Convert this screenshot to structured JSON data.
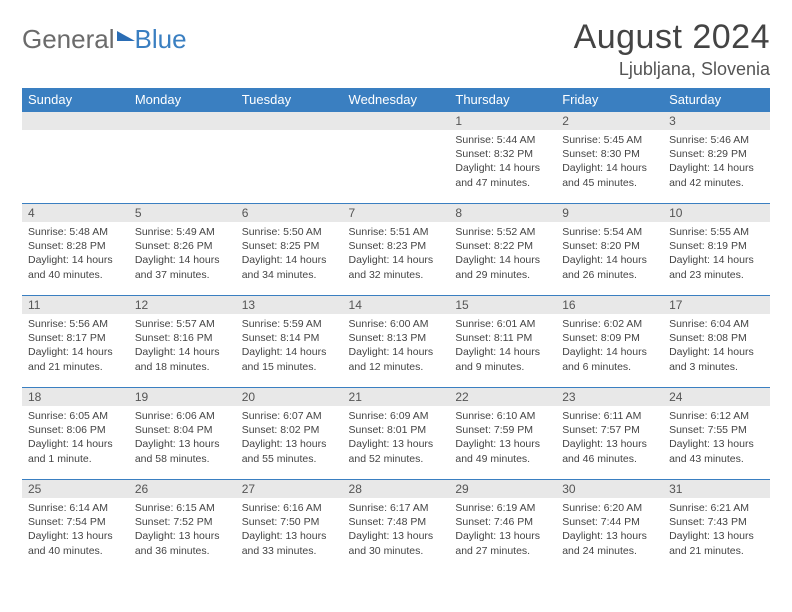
{
  "brand": {
    "text1": "General",
    "text2": "Blue"
  },
  "title": "August 2024",
  "location": "Ljubljana, Slovenia",
  "colors": {
    "header_bg": "#3a7fc1",
    "daynum_bg": "#e8e8e8",
    "border": "#3a7fc1",
    "text": "#444444",
    "page_bg": "#ffffff"
  },
  "weekdays": [
    "Sunday",
    "Monday",
    "Tuesday",
    "Wednesday",
    "Thursday",
    "Friday",
    "Saturday"
  ],
  "grid": [
    [
      null,
      null,
      null,
      null,
      {
        "n": "1",
        "sr": "Sunrise: 5:44 AM",
        "ss": "Sunset: 8:32 PM",
        "dl": "Daylight: 14 hours and 47 minutes."
      },
      {
        "n": "2",
        "sr": "Sunrise: 5:45 AM",
        "ss": "Sunset: 8:30 PM",
        "dl": "Daylight: 14 hours and 45 minutes."
      },
      {
        "n": "3",
        "sr": "Sunrise: 5:46 AM",
        "ss": "Sunset: 8:29 PM",
        "dl": "Daylight: 14 hours and 42 minutes."
      }
    ],
    [
      {
        "n": "4",
        "sr": "Sunrise: 5:48 AM",
        "ss": "Sunset: 8:28 PM",
        "dl": "Daylight: 14 hours and 40 minutes."
      },
      {
        "n": "5",
        "sr": "Sunrise: 5:49 AM",
        "ss": "Sunset: 8:26 PM",
        "dl": "Daylight: 14 hours and 37 minutes."
      },
      {
        "n": "6",
        "sr": "Sunrise: 5:50 AM",
        "ss": "Sunset: 8:25 PM",
        "dl": "Daylight: 14 hours and 34 minutes."
      },
      {
        "n": "7",
        "sr": "Sunrise: 5:51 AM",
        "ss": "Sunset: 8:23 PM",
        "dl": "Daylight: 14 hours and 32 minutes."
      },
      {
        "n": "8",
        "sr": "Sunrise: 5:52 AM",
        "ss": "Sunset: 8:22 PM",
        "dl": "Daylight: 14 hours and 29 minutes."
      },
      {
        "n": "9",
        "sr": "Sunrise: 5:54 AM",
        "ss": "Sunset: 8:20 PM",
        "dl": "Daylight: 14 hours and 26 minutes."
      },
      {
        "n": "10",
        "sr": "Sunrise: 5:55 AM",
        "ss": "Sunset: 8:19 PM",
        "dl": "Daylight: 14 hours and 23 minutes."
      }
    ],
    [
      {
        "n": "11",
        "sr": "Sunrise: 5:56 AM",
        "ss": "Sunset: 8:17 PM",
        "dl": "Daylight: 14 hours and 21 minutes."
      },
      {
        "n": "12",
        "sr": "Sunrise: 5:57 AM",
        "ss": "Sunset: 8:16 PM",
        "dl": "Daylight: 14 hours and 18 minutes."
      },
      {
        "n": "13",
        "sr": "Sunrise: 5:59 AM",
        "ss": "Sunset: 8:14 PM",
        "dl": "Daylight: 14 hours and 15 minutes."
      },
      {
        "n": "14",
        "sr": "Sunrise: 6:00 AM",
        "ss": "Sunset: 8:13 PM",
        "dl": "Daylight: 14 hours and 12 minutes."
      },
      {
        "n": "15",
        "sr": "Sunrise: 6:01 AM",
        "ss": "Sunset: 8:11 PM",
        "dl": "Daylight: 14 hours and 9 minutes."
      },
      {
        "n": "16",
        "sr": "Sunrise: 6:02 AM",
        "ss": "Sunset: 8:09 PM",
        "dl": "Daylight: 14 hours and 6 minutes."
      },
      {
        "n": "17",
        "sr": "Sunrise: 6:04 AM",
        "ss": "Sunset: 8:08 PM",
        "dl": "Daylight: 14 hours and 3 minutes."
      }
    ],
    [
      {
        "n": "18",
        "sr": "Sunrise: 6:05 AM",
        "ss": "Sunset: 8:06 PM",
        "dl": "Daylight: 14 hours and 1 minute."
      },
      {
        "n": "19",
        "sr": "Sunrise: 6:06 AM",
        "ss": "Sunset: 8:04 PM",
        "dl": "Daylight: 13 hours and 58 minutes."
      },
      {
        "n": "20",
        "sr": "Sunrise: 6:07 AM",
        "ss": "Sunset: 8:02 PM",
        "dl": "Daylight: 13 hours and 55 minutes."
      },
      {
        "n": "21",
        "sr": "Sunrise: 6:09 AM",
        "ss": "Sunset: 8:01 PM",
        "dl": "Daylight: 13 hours and 52 minutes."
      },
      {
        "n": "22",
        "sr": "Sunrise: 6:10 AM",
        "ss": "Sunset: 7:59 PM",
        "dl": "Daylight: 13 hours and 49 minutes."
      },
      {
        "n": "23",
        "sr": "Sunrise: 6:11 AM",
        "ss": "Sunset: 7:57 PM",
        "dl": "Daylight: 13 hours and 46 minutes."
      },
      {
        "n": "24",
        "sr": "Sunrise: 6:12 AM",
        "ss": "Sunset: 7:55 PM",
        "dl": "Daylight: 13 hours and 43 minutes."
      }
    ],
    [
      {
        "n": "25",
        "sr": "Sunrise: 6:14 AM",
        "ss": "Sunset: 7:54 PM",
        "dl": "Daylight: 13 hours and 40 minutes."
      },
      {
        "n": "26",
        "sr": "Sunrise: 6:15 AM",
        "ss": "Sunset: 7:52 PM",
        "dl": "Daylight: 13 hours and 36 minutes."
      },
      {
        "n": "27",
        "sr": "Sunrise: 6:16 AM",
        "ss": "Sunset: 7:50 PM",
        "dl": "Daylight: 13 hours and 33 minutes."
      },
      {
        "n": "28",
        "sr": "Sunrise: 6:17 AM",
        "ss": "Sunset: 7:48 PM",
        "dl": "Daylight: 13 hours and 30 minutes."
      },
      {
        "n": "29",
        "sr": "Sunrise: 6:19 AM",
        "ss": "Sunset: 7:46 PM",
        "dl": "Daylight: 13 hours and 27 minutes."
      },
      {
        "n": "30",
        "sr": "Sunrise: 6:20 AM",
        "ss": "Sunset: 7:44 PM",
        "dl": "Daylight: 13 hours and 24 minutes."
      },
      {
        "n": "31",
        "sr": "Sunrise: 6:21 AM",
        "ss": "Sunset: 7:43 PM",
        "dl": "Daylight: 13 hours and 21 minutes."
      }
    ]
  ]
}
